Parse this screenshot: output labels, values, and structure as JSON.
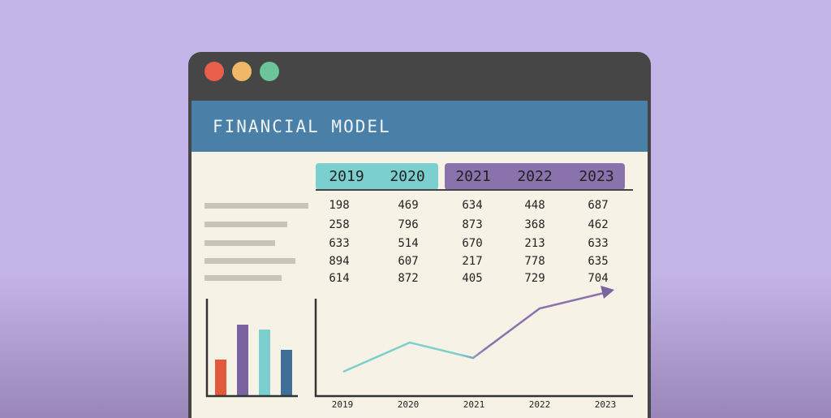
{
  "header": {
    "title": "FINANCIAL MODEL"
  },
  "table": {
    "years": [
      "2019",
      "2020",
      "2021",
      "2022",
      "2023"
    ],
    "rows": [
      [
        198,
        469,
        634,
        448,
        687
      ],
      [
        258,
        796,
        873,
        368,
        462
      ],
      [
        633,
        514,
        670,
        213,
        633
      ],
      [
        894,
        607,
        217,
        778,
        635
      ],
      [
        614,
        872,
        405,
        729,
        704
      ]
    ]
  },
  "line_chart": {
    "x_labels": [
      "2019",
      "2020",
      "2021",
      "2022",
      "2023"
    ]
  }
}
